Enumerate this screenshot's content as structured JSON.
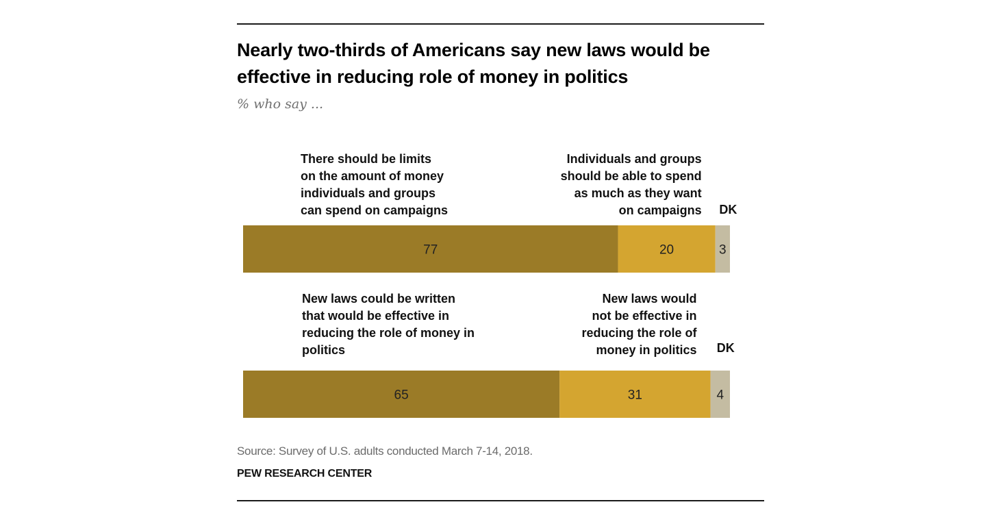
{
  "title_lines": [
    "Nearly two-thirds of Americans say new laws would be",
    "effective in reducing role of money in politics"
  ],
  "subtitle": "% who say ...",
  "source": "Source: Survey of U.S. adults conducted March 7-14, 2018.",
  "brand": "PEW RESEARCH CENTER",
  "colors": {
    "dark": "#9b7b27",
    "medium": "#d4a530",
    "dk": "#c4bca2"
  },
  "chart_data": {
    "type": "bar",
    "orientation": "horizontal",
    "stacked": true,
    "xlim": [
      0,
      100
    ],
    "rows": [
      {
        "segments": [
          {
            "key": "left",
            "label_lines": [
              "There should be limits",
              "on the amount of money",
              "individuals and groups",
              "can spend on campaigns"
            ],
            "value": 77
          },
          {
            "key": "right",
            "label_lines": [
              "Individuals and groups",
              "should be able to spend",
              "as much as they want",
              "on campaigns"
            ],
            "value": 20
          },
          {
            "key": "dk",
            "label_lines": [
              "DK"
            ],
            "value": 3
          }
        ]
      },
      {
        "segments": [
          {
            "key": "left",
            "label_lines": [
              "New laws could be written",
              "that would be effective in",
              "reducing the role of money in",
              "politics"
            ],
            "value": 65
          },
          {
            "key": "right",
            "label_lines": [
              "New laws would",
              "not be effective in",
              "reducing the role of",
              "money in politics"
            ],
            "value": 31
          },
          {
            "key": "dk",
            "label_lines": [
              "DK"
            ],
            "value": 4
          }
        ]
      }
    ]
  }
}
